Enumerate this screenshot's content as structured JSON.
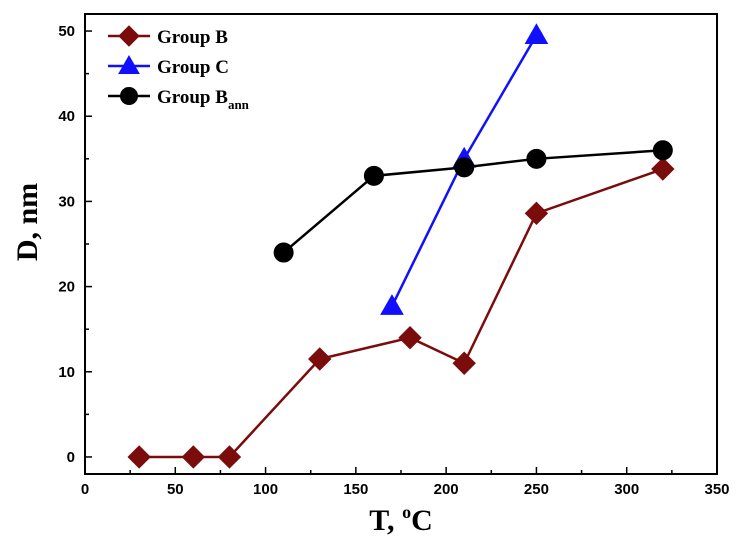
{
  "chart_data": {
    "type": "line",
    "xlabel": "T, ",
    "xlabel_sup": "o",
    "xlabel_unit": "C",
    "ylabel": "D, nm",
    "xlim": [
      0,
      350
    ],
    "ylim": [
      -2,
      52
    ],
    "xticks": [
      0,
      50,
      100,
      150,
      200,
      250,
      300,
      350
    ],
    "yticks": [
      0,
      10,
      20,
      30,
      40,
      50
    ],
    "grid": false,
    "legend_position": "top-left",
    "series": [
      {
        "name": "Group B",
        "name_sub": "",
        "color": "#7a0c0c",
        "marker": "diamond",
        "x": [
          30,
          60,
          80,
          130,
          180,
          210,
          250,
          320
        ],
        "y": [
          0,
          0,
          0,
          11.5,
          14,
          11,
          28.6,
          33.8
        ]
      },
      {
        "name": "Group C",
        "name_sub": "",
        "color": "#1010ff",
        "marker": "triangle",
        "x": [
          170,
          210,
          250
        ],
        "y": [
          17.7,
          35,
          49.5
        ]
      },
      {
        "name": "Group B",
        "name_sub": "ann",
        "color": "#000000",
        "marker": "circle",
        "x": [
          110,
          160,
          210,
          250,
          320
        ],
        "y": [
          24,
          33,
          34,
          35,
          36
        ]
      }
    ]
  }
}
